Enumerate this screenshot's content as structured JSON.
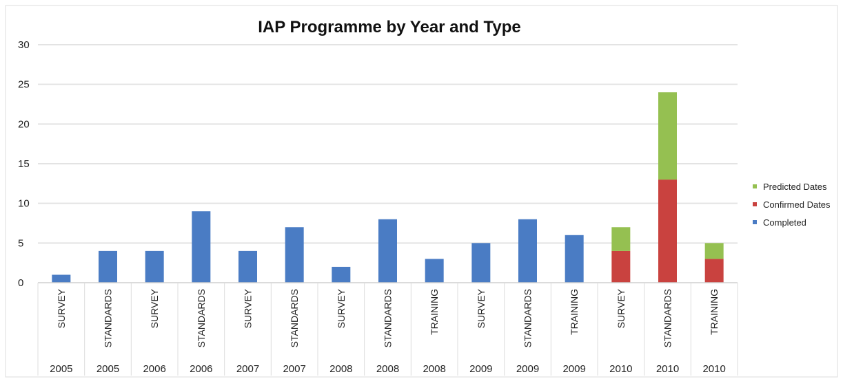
{
  "chart_data": {
    "type": "bar",
    "stacked": true,
    "title": "IAP Programme by Year and Type",
    "xlabel": "",
    "ylabel": "",
    "ylim": [
      0,
      30
    ],
    "yticks": [
      0,
      5,
      10,
      15,
      20,
      25,
      30
    ],
    "grid": true,
    "legend_position": "right",
    "categories": [
      {
        "type": "SURVEY",
        "year": "2005"
      },
      {
        "type": "STANDARDS",
        "year": "2005"
      },
      {
        "type": "SURVEY",
        "year": "2006"
      },
      {
        "type": "STANDARDS",
        "year": "2006"
      },
      {
        "type": "SURVEY",
        "year": "2007"
      },
      {
        "type": "STANDARDS",
        "year": "2007"
      },
      {
        "type": "SURVEY",
        "year": "2008"
      },
      {
        "type": "STANDARDS",
        "year": "2008"
      },
      {
        "type": "TRAINING",
        "year": "2008"
      },
      {
        "type": "SURVEY",
        "year": "2009"
      },
      {
        "type": "STANDARDS",
        "year": "2009"
      },
      {
        "type": "TRAINING",
        "year": "2009"
      },
      {
        "type": "SURVEY",
        "year": "2010"
      },
      {
        "type": "STANDARDS",
        "year": "2010"
      },
      {
        "type": "TRAINING",
        "year": "2010"
      }
    ],
    "series": [
      {
        "name": "Completed",
        "color": "#4a7cc4",
        "values": [
          1,
          4,
          4,
          9,
          4,
          7,
          2,
          8,
          3,
          5,
          8,
          6,
          0,
          0,
          0
        ]
      },
      {
        "name": "Confirmed Dates",
        "color": "#c9423f",
        "values": [
          0,
          0,
          0,
          0,
          0,
          0,
          0,
          0,
          0,
          0,
          0,
          0,
          4,
          13,
          3
        ]
      },
      {
        "name": "Predicted Dates",
        "color": "#95c051",
        "values": [
          0,
          0,
          0,
          0,
          0,
          0,
          0,
          0,
          0,
          0,
          0,
          0,
          3,
          11,
          2
        ]
      }
    ],
    "legend_order": [
      "Predicted Dates",
      "Confirmed Dates",
      "Completed"
    ]
  }
}
